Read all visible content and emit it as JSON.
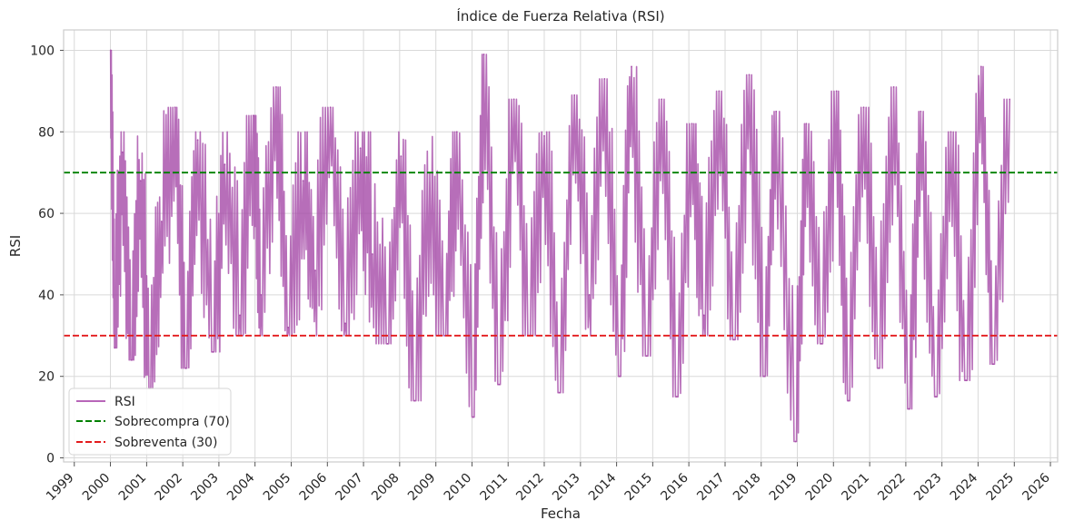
{
  "chart_data": {
    "type": "line",
    "title": "Índice de Fuerza Relativa (RSI)",
    "xlabel": "Fecha",
    "ylabel": "RSI",
    "xlim": [
      "1998-09-15",
      "2026-03-15"
    ],
    "ylim": [
      -1,
      105
    ],
    "grid": true,
    "legend_position": "lower-left",
    "x_ticks": [
      "1999",
      "2000",
      "2001",
      "2002",
      "2003",
      "2004",
      "2005",
      "2006",
      "2007",
      "2008",
      "2009",
      "2010",
      "2011",
      "2012",
      "2013",
      "2014",
      "2015",
      "2016",
      "2017",
      "2018",
      "2019",
      "2020",
      "2021",
      "2022",
      "2023",
      "2024",
      "2025",
      "2026"
    ],
    "y_ticks": [
      0,
      20,
      40,
      60,
      80,
      100
    ],
    "series": [
      {
        "name": "RSI",
        "color": "#a54aa8",
        "x": [
          "2000-01-03",
          "2000-02-15",
          "2000-05-01",
          "2000-08-01",
          "2000-11-01",
          "2001-02-01",
          "2001-06-01",
          "2001-10-15",
          "2002-02-01",
          "2002-06-01",
          "2002-11-01",
          "2003-03-01",
          "2003-08-01",
          "2003-12-15",
          "2004-03-01",
          "2004-08-01",
          "2004-12-01",
          "2005-05-01",
          "2005-09-01",
          "2006-02-01",
          "2006-07-01",
          "2006-12-01",
          "2007-04-01",
          "2007-09-01",
          "2008-01-15",
          "2008-06-01",
          "2008-11-01",
          "2009-04-01",
          "2009-08-01",
          "2010-01-15",
          "2010-05-01",
          "2010-10-01",
          "2011-03-01",
          "2011-08-01",
          "2012-01-01",
          "2012-06-01",
          "2012-11-01",
          "2013-04-01",
          "2013-09-01",
          "2014-02-01",
          "2014-06-01",
          "2014-11-01",
          "2015-04-01",
          "2015-09-01",
          "2016-02-01",
          "2016-06-01",
          "2016-11-01",
          "2017-04-01",
          "2017-09-01",
          "2018-02-01",
          "2018-06-01",
          "2018-12-15",
          "2019-04-01",
          "2019-09-01",
          "2020-02-01",
          "2020-06-01",
          "2020-11-01",
          "2021-04-01",
          "2021-09-01",
          "2022-02-01",
          "2022-06-01",
          "2022-11-01",
          "2023-04-01",
          "2023-09-01",
          "2024-02-01",
          "2024-06-01",
          "2024-11-15"
        ],
        "values": [
          100,
          27,
          75,
          24,
          68,
          17,
          58,
          86,
          22,
          78,
          26,
          72,
          35,
          84,
          40,
          91,
          32,
          68,
          46,
          86,
          33,
          76,
          50,
          28,
          74,
          14,
          70,
          30,
          80,
          10,
          99,
          18,
          88,
          30,
          79,
          16,
          89,
          40,
          93,
          20,
          96,
          25,
          88,
          15,
          82,
          35,
          90,
          29,
          94,
          20,
          85,
          4,
          82,
          28,
          90,
          14,
          86,
          22,
          91,
          12,
          85,
          15,
          80,
          19,
          96,
          23,
          88
        ]
      },
      {
        "name": "Sobrecompra (70)",
        "color": "#008000",
        "y": 70
      },
      {
        "name": "Sobreventa (30)",
        "color": "#e31a1c",
        "y": 30
      }
    ]
  }
}
